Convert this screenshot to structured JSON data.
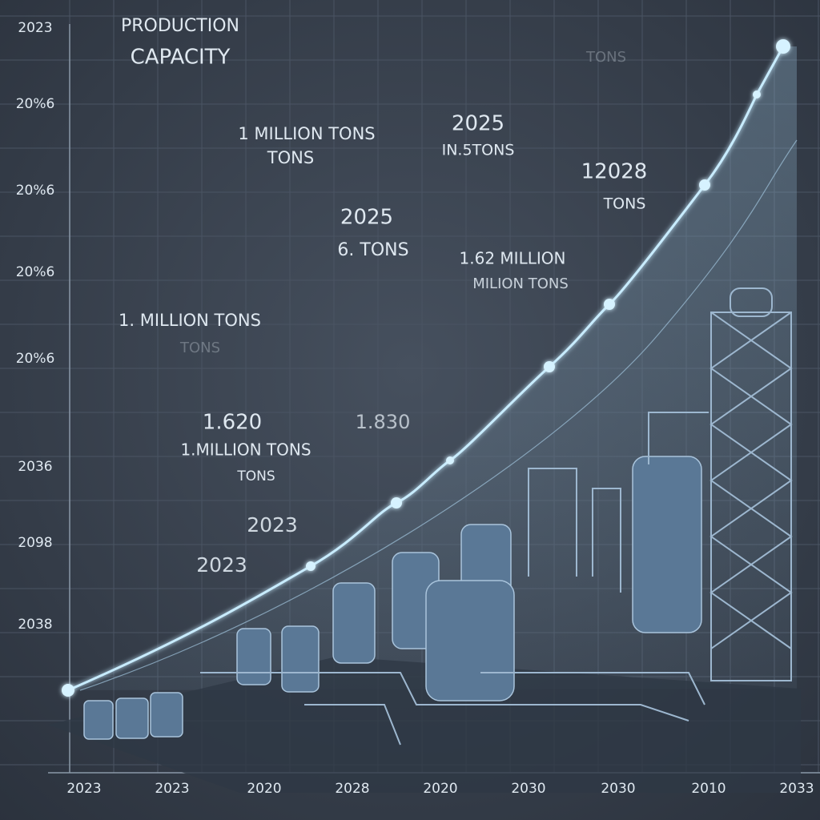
{
  "title_lines": [
    "PRODUCTION",
    "CAPACITY"
  ],
  "y_labels": [
    "2023",
    "20%6",
    "20%6",
    "20%6",
    "20%6",
    "2036",
    "2098",
    "2038"
  ],
  "x_labels": [
    "2023",
    "2023",
    "2020",
    "2028",
    "2020",
    "2030",
    "2030",
    "2010",
    "2033"
  ],
  "annotations": [
    "1 MILLION TONS",
    "TONS",
    "2025",
    "IN.5TONS",
    "TONS",
    "12028",
    "TONS",
    "2025",
    "6. TONS",
    "1.62 MILLION",
    "MILION TONS",
    "1. MILLION TONS",
    "TONS",
    "1.620",
    "1.830",
    "1.MILLION TONS",
    "TONS",
    "2023",
    "2023"
  ]
}
